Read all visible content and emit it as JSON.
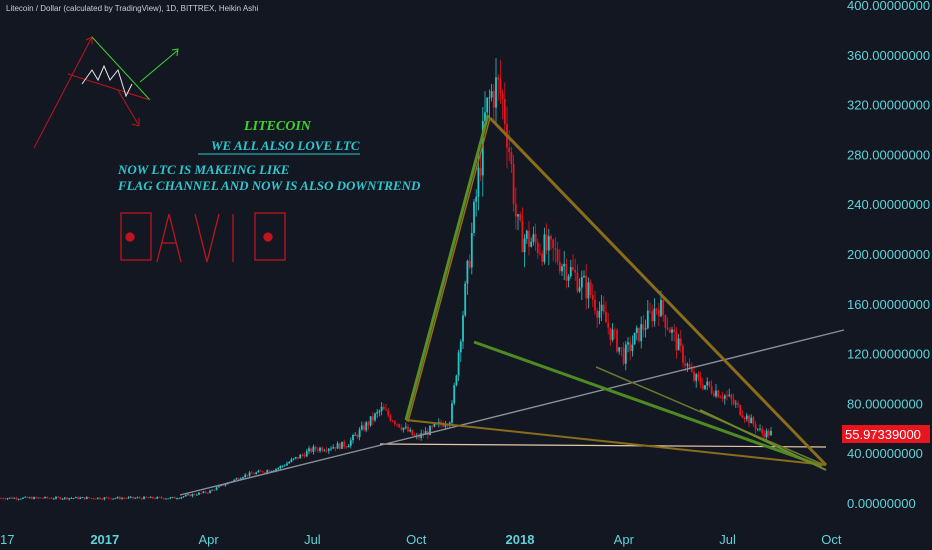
{
  "header": {
    "symbol_line": "Litecoin / Dollar (calculated by TradingView), 1D, BITTREX, Heikin Ashi"
  },
  "annotations": {
    "title": "LITECOIN",
    "subtitle": "WE ALL ALSO LOVE LTC",
    "line1": "NOW LTC IS MAKEING LIKE",
    "line2": "FLAG CHANNEL AND NOW IS ALSO DOWNTREND",
    "signature": "DAVID"
  },
  "price_badge": "55.97339000",
  "colors": {
    "background": "#131722",
    "up": "#26c6c6",
    "down": "#e8141e",
    "axis_text": "#5fd3d7",
    "triangle_outer": "#8a6d1a",
    "flag_green": "#4e8a23",
    "trend_gray": "#8c8c9a",
    "support_peach": "#e8c8a8",
    "title_green": "#3ed32c",
    "text_teal": "#2ec7cf",
    "signature_red": "#c0141c"
  },
  "chart_data": {
    "type": "candlestick",
    "title": "Litecoin / Dollar (calculated by TradingView), 1D, BITTREX, Heikin Ashi",
    "ylim": [
      -25,
      400
    ],
    "y_ticks": [
      {
        "value": 0,
        "label": "0.00000000"
      },
      {
        "value": 40,
        "label": "40.00000000"
      },
      {
        "value": 80,
        "label": "80.00000000"
      },
      {
        "value": 120,
        "label": "120.00000000"
      },
      {
        "value": 160,
        "label": "160.00000000"
      },
      {
        "value": 200,
        "label": "200.00000000"
      },
      {
        "value": 240,
        "label": "240.00000000"
      },
      {
        "value": 280,
        "label": "280.00000000"
      },
      {
        "value": 320,
        "label": "320.00000000"
      },
      {
        "value": 360,
        "label": "360.00000000"
      },
      {
        "value": 400,
        "label": "400.00000000"
      }
    ],
    "x_ticks": [
      {
        "date": "2016-10",
        "label": "17"
      },
      {
        "date": "2017-01",
        "label": "2017"
      },
      {
        "date": "2017-04",
        "label": "Apr"
      },
      {
        "date": "2017-07",
        "label": "Jul"
      },
      {
        "date": "2017-10",
        "label": "Oct"
      },
      {
        "date": "2018-01",
        "label": "2018"
      },
      {
        "date": "2018-04",
        "label": "Apr"
      },
      {
        "date": "2018-07",
        "label": "Jul"
      },
      {
        "date": "2018-10",
        "label": "Oct"
      }
    ],
    "last_price": 55.97339,
    "approx_closes": [
      {
        "date": "2016-10",
        "value": 4
      },
      {
        "date": "2017-03",
        "value": 4
      },
      {
        "date": "2017-04",
        "value": 9
      },
      {
        "date": "2017-05",
        "value": 22
      },
      {
        "date": "2017-06",
        "value": 28
      },
      {
        "date": "2017-07",
        "value": 43
      },
      {
        "date": "2017-08",
        "value": 47
      },
      {
        "date": "2017-09",
        "value": 75
      },
      {
        "date": "2017-10",
        "value": 52
      },
      {
        "date": "2017-11",
        "value": 68
      },
      {
        "date": "2017-12",
        "value": 310
      },
      {
        "date": "2018-01",
        "value": 215
      },
      {
        "date": "2018-02",
        "value": 200
      },
      {
        "date": "2018-03",
        "value": 170
      },
      {
        "date": "2018-04",
        "value": 118
      },
      {
        "date": "2018-05",
        "value": 160
      },
      {
        "date": "2018-06",
        "value": 100
      },
      {
        "date": "2018-07",
        "value": 85
      },
      {
        "date": "2018-08",
        "value": 56
      }
    ],
    "grid": false,
    "legend": "none"
  }
}
